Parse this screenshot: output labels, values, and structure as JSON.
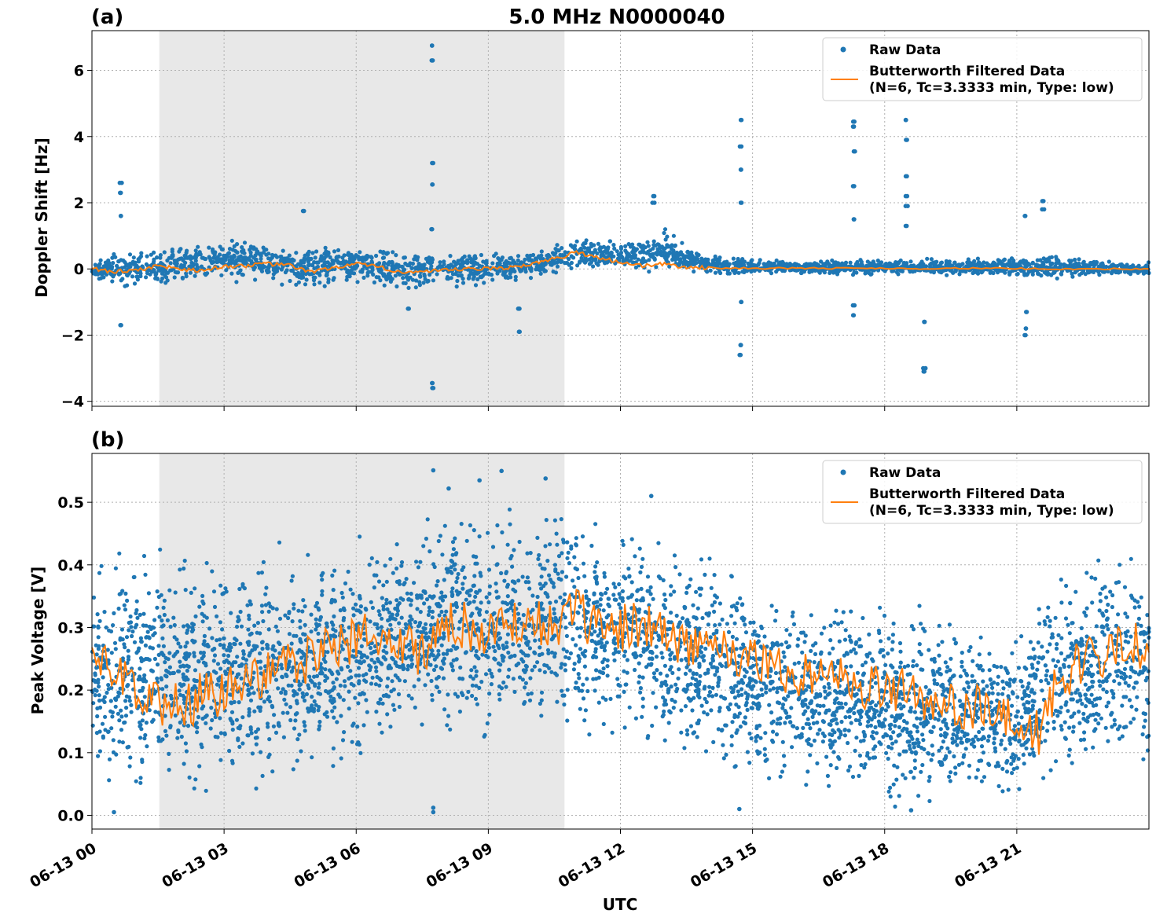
{
  "figure": {
    "title": "5.0 MHz N0000040",
    "xlabel": "UTC",
    "colors": {
      "raw": "#1f77b4",
      "filtered": "#ff7f0e",
      "shade": "#e8e8e8"
    }
  },
  "chart_data": [
    {
      "type": "scatter",
      "panel_label": "(a)",
      "ylabel": "Doppler Shift [Hz]",
      "xlim": [
        0,
        24
      ],
      "ylim": [
        -4.15,
        7.2
      ],
      "x_unit": "hours UTC since 06-13 00",
      "x_ticks": [
        0,
        3,
        6,
        9,
        12,
        15,
        18,
        21
      ],
      "y_ticks": [
        -4,
        -2,
        0,
        2,
        4,
        6
      ],
      "y_tick_labels": [
        "−4",
        "−2",
        "0",
        "2",
        "4",
        "6"
      ],
      "grid": true,
      "legend": "top-right",
      "shaded_interval": [
        1.53,
        10.73
      ],
      "series": [
        {
          "name": "Raw Data",
          "style": "points",
          "envelope": [
            {
              "x": 0.0,
              "lo": -0.3,
              "hi": 0.2
            },
            {
              "x": 0.5,
              "lo": -0.5,
              "hi": 0.5
            },
            {
              "x": 1.0,
              "lo": -0.6,
              "hi": 0.6
            },
            {
              "x": 2.0,
              "lo": -0.5,
              "hi": 0.8
            },
            {
              "x": 3.0,
              "lo": -0.4,
              "hi": 0.9
            },
            {
              "x": 4.0,
              "lo": -0.4,
              "hi": 0.8
            },
            {
              "x": 5.0,
              "lo": -0.6,
              "hi": 0.7
            },
            {
              "x": 6.0,
              "lo": -0.4,
              "hi": 0.7
            },
            {
              "x": 7.0,
              "lo": -0.8,
              "hi": 0.6
            },
            {
              "x": 8.0,
              "lo": -0.5,
              "hi": 0.6
            },
            {
              "x": 9.0,
              "lo": -0.5,
              "hi": 0.5
            },
            {
              "x": 10.0,
              "lo": -0.3,
              "hi": 0.5
            },
            {
              "x": 11.0,
              "lo": 0.0,
              "hi": 1.0
            },
            {
              "x": 12.0,
              "lo": 0.0,
              "hi": 0.8
            },
            {
              "x": 13.0,
              "lo": -0.1,
              "hi": 1.2
            },
            {
              "x": 14.0,
              "lo": -0.2,
              "hi": 0.4
            },
            {
              "x": 16.0,
              "lo": -0.15,
              "hi": 0.25
            },
            {
              "x": 18.0,
              "lo": -0.2,
              "hi": 0.3
            },
            {
              "x": 20.0,
              "lo": -0.2,
              "hi": 0.3
            },
            {
              "x": 22.0,
              "lo": -0.3,
              "hi": 0.4
            },
            {
              "x": 24.0,
              "lo": -0.2,
              "hi": 0.2
            }
          ],
          "spikes": [
            {
              "x": 0.65,
              "y": [
                2.6,
                2.3,
                -1.7,
                1.6
              ]
            },
            {
              "x": 7.73,
              "y": [
                6.75,
                6.3,
                3.2,
                2.55,
                1.2,
                -3.45,
                -3.6
              ]
            },
            {
              "x": 12.75,
              "y": [
                2.2,
                2.0
              ]
            },
            {
              "x": 14.73,
              "y": [
                4.5,
                3.7,
                3.0,
                2.0,
                -1.0,
                -2.3,
                -2.6
              ]
            },
            {
              "x": 17.3,
              "y": [
                4.45,
                4.3,
                3.55,
                2.5,
                1.5,
                -1.1,
                -1.4
              ]
            },
            {
              "x": 18.5,
              "y": [
                4.5,
                3.9,
                2.8,
                2.2,
                1.9,
                1.3
              ]
            },
            {
              "x": 18.9,
              "y": [
                -1.6,
                -3.0,
                -3.1
              ]
            },
            {
              "x": 21.2,
              "y": [
                -1.8,
                -2.0,
                -1.3,
                1.6
              ]
            },
            {
              "x": 21.6,
              "y": [
                2.05,
                1.8
              ]
            },
            {
              "x": 4.8,
              "y": [
                1.75
              ]
            },
            {
              "x": 9.7,
              "y": [
                -1.9,
                -1.2
              ]
            },
            {
              "x": 7.2,
              "y": [
                -1.2
              ]
            }
          ]
        },
        {
          "name": "Butterworth Filtered Data\n(N=6, Tc=3.3333 min, Type: low)",
          "style": "line",
          "x": [
            0,
            0.5,
            1,
            1.5,
            2,
            2.5,
            3,
            3.5,
            4,
            4.5,
            5,
            5.5,
            6,
            6.5,
            7,
            7.5,
            8,
            8.5,
            9,
            9.5,
            10,
            10.5,
            11,
            11.5,
            12,
            12.5,
            13,
            13.5,
            14,
            15,
            16,
            17,
            18,
            19,
            20,
            21,
            22,
            23,
            24
          ],
          "y": [
            0.0,
            -0.08,
            -0.05,
            0.1,
            0.0,
            -0.05,
            0.08,
            0.1,
            0.15,
            0.1,
            -0.1,
            0.05,
            0.15,
            0.05,
            -0.08,
            -0.1,
            -0.05,
            0.0,
            0.0,
            0.05,
            0.15,
            0.3,
            0.5,
            0.35,
            0.2,
            0.1,
            0.15,
            0.05,
            0.03,
            0.02,
            0.02,
            0.02,
            0.02,
            0.01,
            0.02,
            0.01,
            0.0,
            0.0,
            0.0
          ]
        }
      ]
    },
    {
      "type": "scatter",
      "panel_label": "(b)",
      "ylabel": "Peak Voltage [V]",
      "xlim": [
        0,
        24
      ],
      "ylim": [
        -0.022,
        0.578
      ],
      "x_unit": "hours UTC since 06-13 00",
      "x_ticks": [
        0,
        3,
        6,
        9,
        12,
        15,
        18,
        21
      ],
      "x_tick_labels": [
        "06-13 00",
        "06-13 03",
        "06-13 06",
        "06-13 09",
        "06-13 12",
        "06-13 15",
        "06-13 18",
        "06-13 21"
      ],
      "y_ticks": [
        0.0,
        0.1,
        0.2,
        0.3,
        0.4,
        0.5
      ],
      "y_tick_labels": [
        "0.0",
        "0.1",
        "0.2",
        "0.3",
        "0.4",
        "0.5"
      ],
      "grid": true,
      "legend": "top-right",
      "shaded_interval": [
        1.53,
        10.73
      ],
      "series": [
        {
          "name": "Raw Data",
          "style": "points",
          "envelope": [
            {
              "x": 0.0,
              "lo": 0.05,
              "hi": 0.42
            },
            {
              "x": 1.0,
              "lo": 0.03,
              "hi": 0.43
            },
            {
              "x": 2.0,
              "lo": 0.03,
              "hi": 0.42
            },
            {
              "x": 3.0,
              "lo": 0.04,
              "hi": 0.42
            },
            {
              "x": 4.0,
              "lo": 0.05,
              "hi": 0.42
            },
            {
              "x": 5.0,
              "lo": 0.06,
              "hi": 0.43
            },
            {
              "x": 6.0,
              "lo": 0.08,
              "hi": 0.44
            },
            {
              "x": 7.0,
              "lo": 0.1,
              "hi": 0.45
            },
            {
              "x": 8.0,
              "lo": 0.13,
              "hi": 0.48
            },
            {
              "x": 9.0,
              "lo": 0.12,
              "hi": 0.49
            },
            {
              "x": 10.0,
              "lo": 0.13,
              "hi": 0.48
            },
            {
              "x": 11.0,
              "lo": 0.15,
              "hi": 0.48
            },
            {
              "x": 12.0,
              "lo": 0.13,
              "hi": 0.47
            },
            {
              "x": 13.0,
              "lo": 0.1,
              "hi": 0.45
            },
            {
              "x": 14.0,
              "lo": 0.08,
              "hi": 0.42
            },
            {
              "x": 15.0,
              "lo": 0.04,
              "hi": 0.38
            },
            {
              "x": 16.0,
              "lo": 0.03,
              "hi": 0.36
            },
            {
              "x": 17.0,
              "lo": 0.03,
              "hi": 0.35
            },
            {
              "x": 18.0,
              "lo": 0.02,
              "hi": 0.33
            },
            {
              "x": 19.0,
              "lo": 0.02,
              "hi": 0.32
            },
            {
              "x": 20.0,
              "lo": 0.03,
              "hi": 0.3
            },
            {
              "x": 21.0,
              "lo": 0.02,
              "hi": 0.28
            },
            {
              "x": 22.0,
              "lo": 0.05,
              "hi": 0.4
            },
            {
              "x": 23.0,
              "lo": 0.06,
              "hi": 0.42
            },
            {
              "x": 24.0,
              "lo": 0.07,
              "hi": 0.43
            }
          ],
          "outliers": [
            {
              "x": 7.75,
              "y": 0.551
            },
            {
              "x": 7.75,
              "y": 0.005
            },
            {
              "x": 7.75,
              "y": 0.012
            },
            {
              "x": 8.8,
              "y": 0.535
            },
            {
              "x": 9.3,
              "y": 0.55
            },
            {
              "x": 10.3,
              "y": 0.538
            },
            {
              "x": 8.1,
              "y": 0.522
            },
            {
              "x": 12.7,
              "y": 0.51
            },
            {
              "x": 14.7,
              "y": 0.01
            },
            {
              "x": 0.5,
              "y": 0.005
            },
            {
              "x": 18.6,
              "y": 0.008
            }
          ]
        },
        {
          "name": "Butterworth Filtered Data\n(N=6, Tc=3.3333 min, Type: low)",
          "style": "line",
          "x": [
            0,
            0.5,
            1,
            1.5,
            2,
            2.5,
            3,
            3.5,
            4,
            4.5,
            5,
            5.5,
            6,
            6.5,
            7,
            7.5,
            8,
            8.5,
            9,
            9.5,
            10,
            10.5,
            11,
            11.5,
            12,
            12.5,
            13,
            13.5,
            14,
            14.5,
            15,
            15.5,
            16,
            16.5,
            17,
            17.5,
            18,
            18.5,
            19,
            19.5,
            20,
            20.5,
            21,
            21.5,
            22,
            22.5,
            23,
            23.5,
            24
          ],
          "y": [
            0.27,
            0.23,
            0.2,
            0.18,
            0.17,
            0.19,
            0.2,
            0.22,
            0.23,
            0.24,
            0.25,
            0.27,
            0.28,
            0.29,
            0.27,
            0.26,
            0.31,
            0.3,
            0.29,
            0.3,
            0.31,
            0.31,
            0.32,
            0.3,
            0.3,
            0.3,
            0.29,
            0.28,
            0.27,
            0.26,
            0.25,
            0.24,
            0.23,
            0.22,
            0.22,
            0.21,
            0.2,
            0.2,
            0.19,
            0.18,
            0.17,
            0.16,
            0.14,
            0.13,
            0.22,
            0.25,
            0.26,
            0.28,
            0.26
          ]
        }
      ]
    }
  ]
}
